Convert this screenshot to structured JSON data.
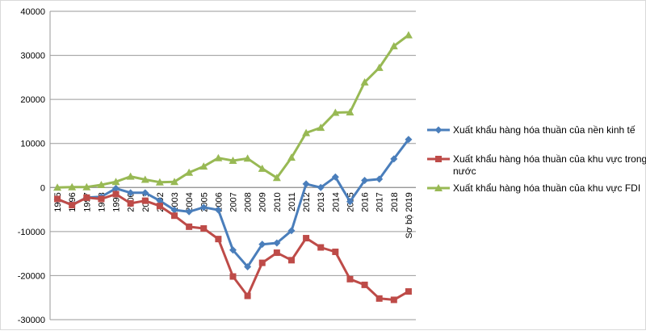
{
  "chart_data": {
    "type": "line",
    "title": "",
    "xlabel": "",
    "ylabel": "",
    "ylim": [
      -30000,
      40000
    ],
    "yticks": [
      -30000,
      -20000,
      -10000,
      0,
      10000,
      20000,
      30000,
      40000
    ],
    "ytick_labels": [
      "-30000",
      "-20000",
      "-10000",
      "0",
      "10000",
      "20000",
      "30000",
      "40000"
    ],
    "grid": "horizontal",
    "legend_position": "right",
    "categories": [
      "1995",
      "1996",
      "1997",
      "1998",
      "1999",
      "2000",
      "2001",
      "2002",
      "2003",
      "2004",
      "2005",
      "2006",
      "2007",
      "2008",
      "2009",
      "2010",
      "2011",
      "2012",
      "2013",
      "2014",
      "2015",
      "2016",
      "2017",
      "2018",
      "Sơ bộ 2019"
    ],
    "series": [
      {
        "name": "Xuất khẩu hàng hóa thuần của nền kinh tế",
        "legend_lines": [
          "Xuất khẩu hàng hóa thuần của nền kinh tế"
        ],
        "color": "#4a7ebb",
        "marker": "diamond",
        "values": [
          -2700,
          -3900,
          -2300,
          -2100,
          -200,
          -1200,
          -1200,
          -3000,
          -5100,
          -5500,
          -4500,
          -5100,
          -14200,
          -18000,
          -12900,
          -12600,
          -9800,
          800,
          0,
          2400,
          -3200,
          1600,
          1900,
          6500,
          10900
        ]
      },
      {
        "name": "Xuất khẩu hàng hóa thuần của khu vực trong nước",
        "legend_lines": [
          "Xuất khẩu hàng hóa thuần của khu vực trong",
          "nước"
        ],
        "color": "#be4b48",
        "marker": "square",
        "values": [
          -2600,
          -4000,
          -2300,
          -2600,
          -1500,
          -3600,
          -3000,
          -4200,
          -6400,
          -8900,
          -9300,
          -11700,
          -20200,
          -24600,
          -17100,
          -14800,
          -16500,
          -11500,
          -13600,
          -14600,
          -20800,
          -22100,
          -25200,
          -25500,
          -23600
        ]
      },
      {
        "name": "Xuất khẩu hàng hóa thuần của khu vực FDI",
        "legend_lines": [
          "Xuất khẩu hàng hóa thuần của khu vực FDI"
        ],
        "color": "#98b954",
        "marker": "triangle",
        "values": [
          0,
          100,
          100,
          600,
          1300,
          2500,
          1800,
          1200,
          1300,
          3400,
          4800,
          6700,
          6100,
          6600,
          4300,
          2200,
          6800,
          12400,
          13600,
          17000,
          17100,
          23900,
          27200,
          32100,
          34600
        ]
      }
    ]
  }
}
